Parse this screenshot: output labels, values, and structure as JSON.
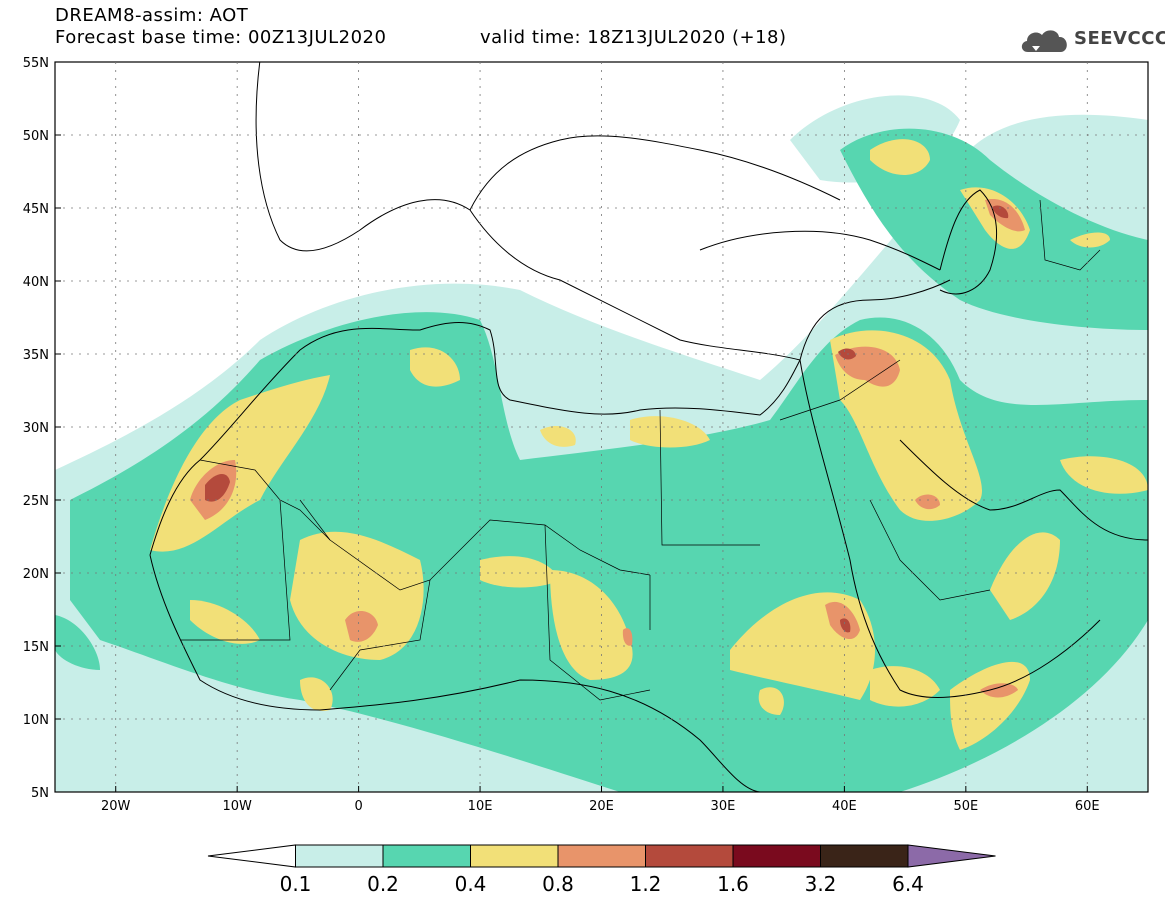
{
  "header": {
    "title": "DREAM8-assim: AOT",
    "base_time": "Forecast base time: 00Z13JUL2020",
    "valid_time": "valid time: 18Z13JUL2020 (+18)",
    "logo_text": "SEEVCCC"
  },
  "map": {
    "lon_range": [
      -25,
      65
    ],
    "lat_range": [
      5,
      55
    ],
    "lat_labels": [
      "55N",
      "50N",
      "45N",
      "40N",
      "35N",
      "30N",
      "25N",
      "20N",
      "15N",
      "10N",
      "5N"
    ],
    "lon_labels": [
      "20W",
      "10W",
      "0",
      "10E",
      "20E",
      "30E",
      "40E",
      "50E",
      "60E"
    ]
  },
  "legend": {
    "labels": [
      "0.1",
      "0.2",
      "0.4",
      "0.8",
      "1.2",
      "1.6",
      "3.2",
      "6.4"
    ],
    "colors": [
      "#ffffff",
      "#c8eee8",
      "#57d6b0",
      "#f2e078",
      "#e8946a",
      "#b44a3c",
      "#7a0a1e",
      "#3a2418",
      "#8c6aa8"
    ]
  },
  "colors": {
    "c1": "#c8eee8",
    "c2": "#57d6b0",
    "c3": "#f2e078",
    "c4": "#e8946a",
    "c5": "#b44a3c",
    "c6": "#7a0a1e"
  }
}
